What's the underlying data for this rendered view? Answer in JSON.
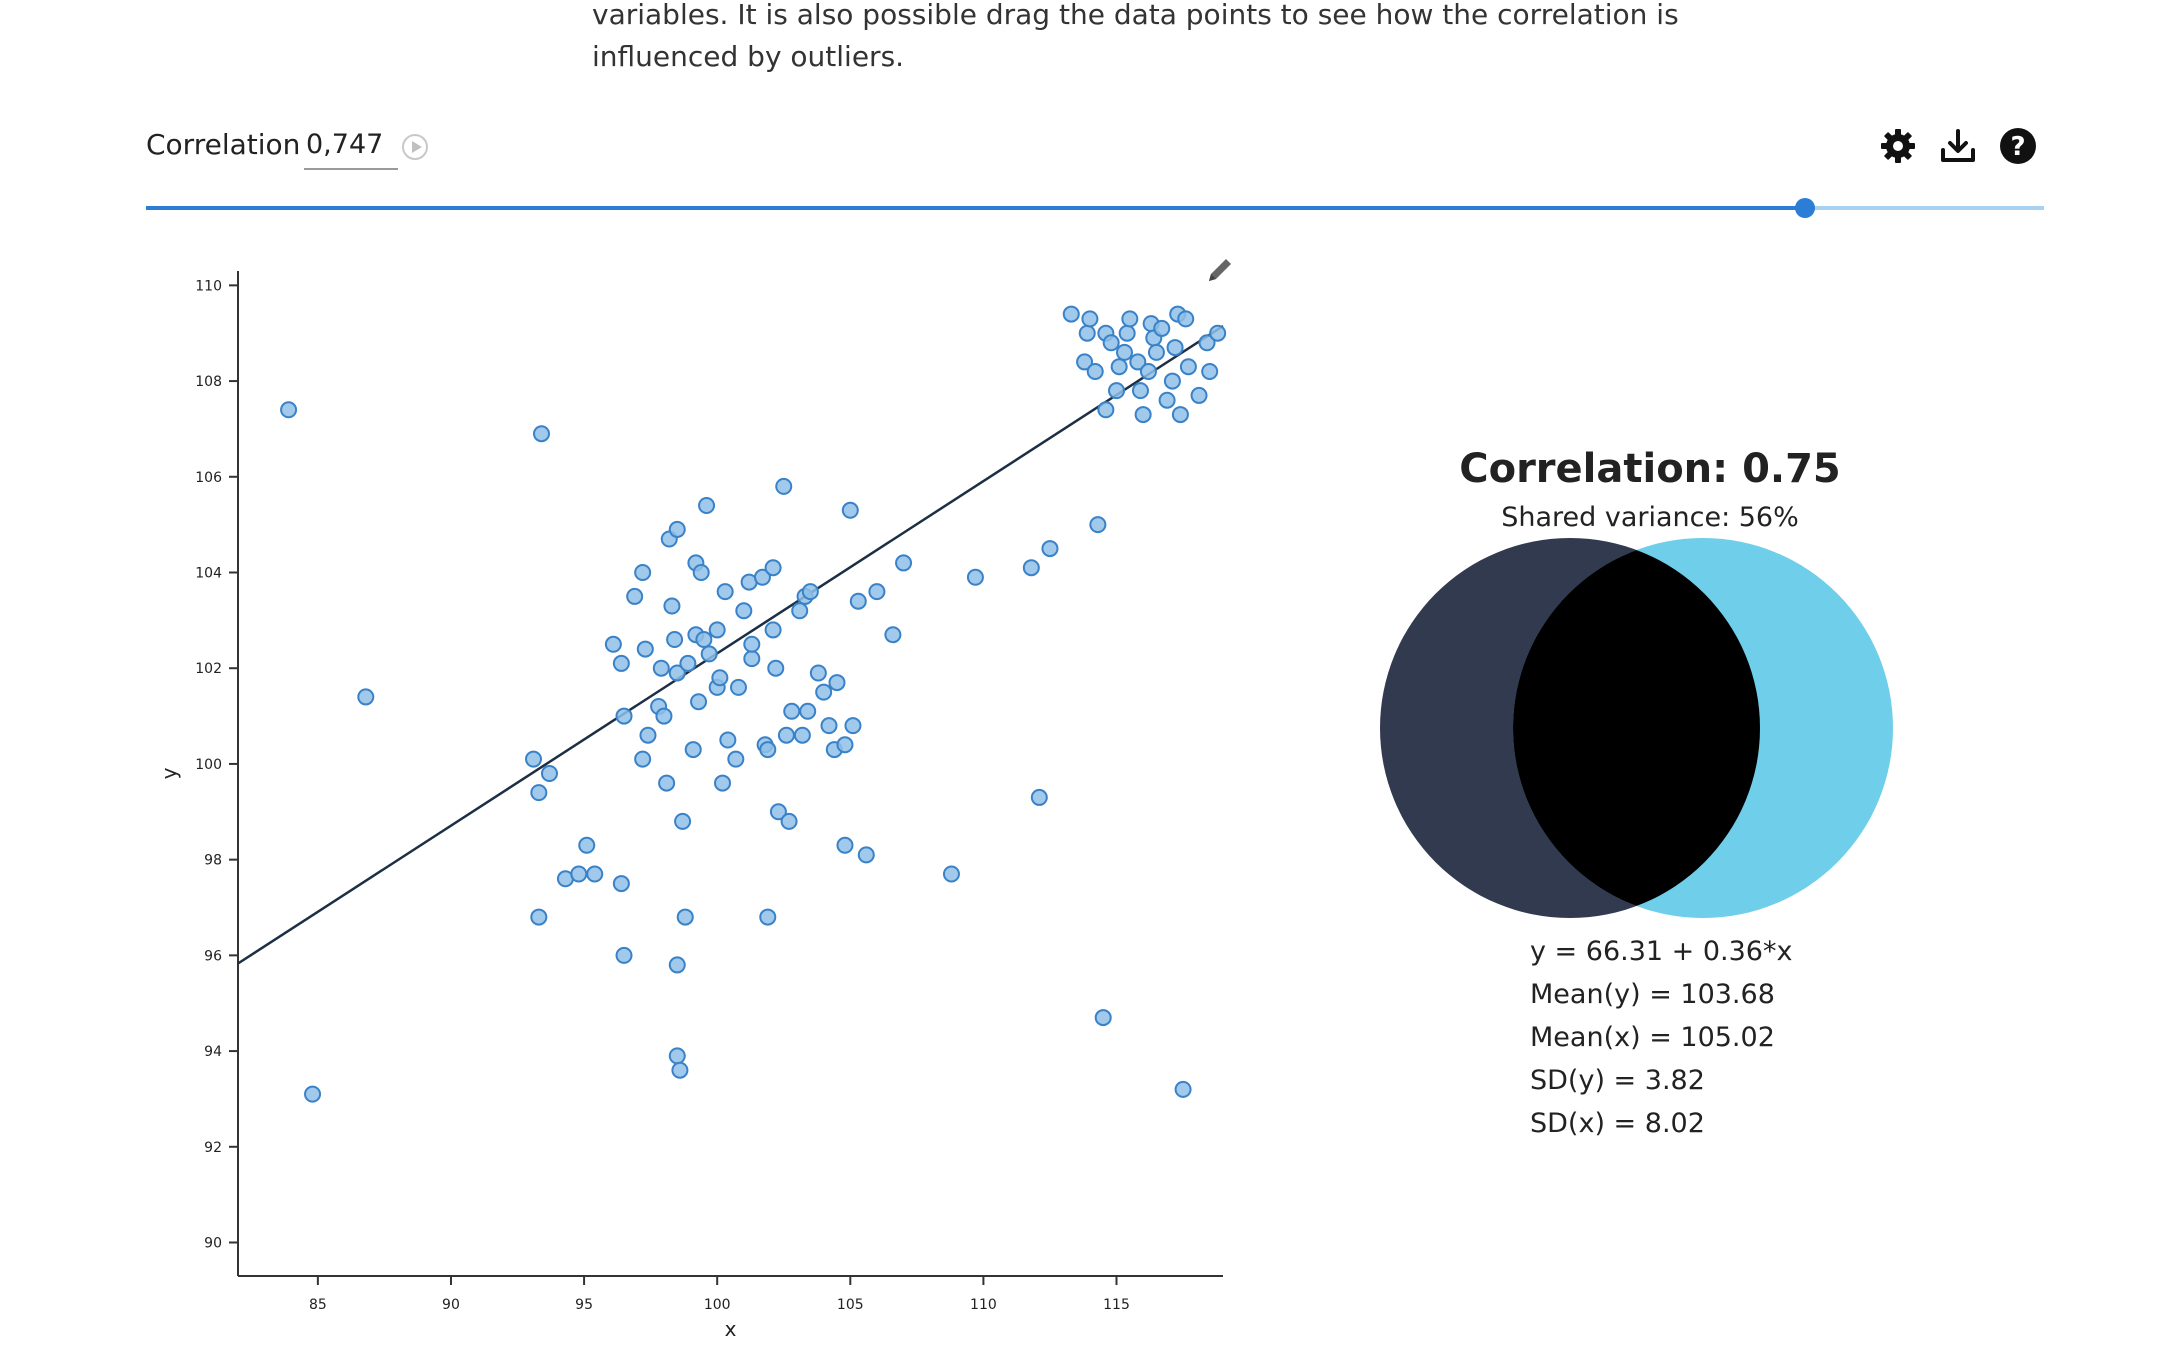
{
  "intro": {
    "line1": "variables. It is also possible drag the data points to see how the correlation is",
    "line2": "influenced by outliers."
  },
  "controls": {
    "correlation_label": "Correlation",
    "correlation_value": "0,747",
    "icons": [
      "play-icon",
      "gear-icon",
      "download-icon",
      "help-icon"
    ],
    "slider_position": 0.874
  },
  "summary": {
    "title": "Correlation: 0.75",
    "shared_variance": "Shared variance: 56%",
    "regression": "y = 66.31 + 0.36*x",
    "mean_y": "Mean(y) = 103.68",
    "mean_x": "Mean(x) = 105.02",
    "sd_y": "SD(y) = 3.82",
    "sd_x": "SD(x) = 8.02"
  },
  "colors": {
    "accent": "#2b7dd6",
    "point_fill": "#8fbfe8",
    "point_stroke": "#3a82c8",
    "regression_line": "#1c2f44",
    "venn_left": "#323a4f",
    "venn_right": "#6fcfea",
    "venn_overlap": "#000000"
  },
  "chart_data": {
    "type": "scatter",
    "title": "",
    "xlabel": "x",
    "ylabel": "y",
    "xlim": [
      82,
      119
    ],
    "ylim": [
      89.3,
      110.3
    ],
    "xticks": [
      85,
      90,
      95,
      100,
      105,
      110,
      115
    ],
    "yticks": [
      90,
      92,
      94,
      96,
      98,
      100,
      102,
      104,
      106,
      108,
      110
    ],
    "regression": {
      "intercept": 66.31,
      "slope": 0.36
    },
    "points": [
      [
        83.9,
        107.4
      ],
      [
        84.8,
        93.1
      ],
      [
        86.8,
        101.4
      ],
      [
        93.4,
        106.9
      ],
      [
        93.1,
        100.1
      ],
      [
        93.3,
        99.4
      ],
      [
        93.7,
        99.8
      ],
      [
        93.3,
        96.8
      ],
      [
        94.3,
        97.6
      ],
      [
        94.8,
        97.7
      ],
      [
        95.1,
        98.3
      ],
      [
        95.4,
        97.7
      ],
      [
        96.4,
        97.5
      ],
      [
        96.5,
        96.0
      ],
      [
        96.1,
        102.5
      ],
      [
        96.4,
        102.1
      ],
      [
        96.5,
        101.0
      ],
      [
        96.9,
        103.5
      ],
      [
        97.2,
        104.0
      ],
      [
        97.3,
        102.4
      ],
      [
        97.4,
        100.6
      ],
      [
        97.2,
        100.1
      ],
      [
        97.8,
        101.2
      ],
      [
        97.9,
        102.0
      ],
      [
        98.0,
        101.0
      ],
      [
        98.1,
        99.6
      ],
      [
        98.2,
        104.7
      ],
      [
        98.3,
        103.3
      ],
      [
        98.4,
        102.6
      ],
      [
        98.5,
        101.9
      ],
      [
        98.5,
        104.9
      ],
      [
        98.7,
        98.8
      ],
      [
        98.9,
        102.1
      ],
      [
        98.8,
        96.8
      ],
      [
        98.5,
        95.8
      ],
      [
        98.5,
        93.9
      ],
      [
        98.6,
        93.6
      ],
      [
        99.2,
        102.7
      ],
      [
        99.2,
        104.2
      ],
      [
        99.4,
        104.0
      ],
      [
        99.3,
        101.3
      ],
      [
        99.1,
        100.3
      ],
      [
        99.6,
        105.4
      ],
      [
        99.5,
        102.6
      ],
      [
        99.7,
        102.3
      ],
      [
        100.0,
        102.8
      ],
      [
        100.0,
        101.6
      ],
      [
        100.1,
        101.8
      ],
      [
        100.2,
        99.6
      ],
      [
        100.4,
        100.5
      ],
      [
        100.3,
        103.6
      ],
      [
        100.8,
        101.6
      ],
      [
        100.7,
        100.1
      ],
      [
        101.0,
        103.2
      ],
      [
        101.2,
        103.8
      ],
      [
        101.3,
        102.2
      ],
      [
        101.3,
        102.5
      ],
      [
        101.7,
        103.9
      ],
      [
        101.8,
        100.4
      ],
      [
        101.9,
        100.3
      ],
      [
        101.9,
        96.8
      ],
      [
        102.1,
        104.1
      ],
      [
        102.1,
        102.8
      ],
      [
        102.2,
        102.0
      ],
      [
        102.3,
        99.0
      ],
      [
        102.5,
        105.8
      ],
      [
        102.6,
        100.6
      ],
      [
        102.7,
        98.8
      ],
      [
        102.8,
        101.1
      ],
      [
        103.1,
        103.2
      ],
      [
        103.3,
        103.5
      ],
      [
        103.2,
        100.6
      ],
      [
        103.5,
        103.6
      ],
      [
        103.4,
        101.1
      ],
      [
        103.8,
        101.9
      ],
      [
        104.0,
        101.5
      ],
      [
        104.2,
        100.8
      ],
      [
        104.4,
        100.3
      ],
      [
        104.5,
        101.7
      ],
      [
        104.8,
        100.4
      ],
      [
        104.8,
        98.3
      ],
      [
        105.0,
        105.3
      ],
      [
        105.1,
        100.8
      ],
      [
        105.3,
        103.4
      ],
      [
        105.6,
        98.1
      ],
      [
        106.0,
        103.6
      ],
      [
        106.6,
        102.7
      ],
      [
        107.0,
        104.2
      ],
      [
        108.8,
        97.7
      ],
      [
        109.7,
        103.9
      ],
      [
        111.8,
        104.1
      ],
      [
        112.1,
        99.3
      ],
      [
        112.5,
        104.5
      ],
      [
        113.3,
        109.4
      ],
      [
        113.8,
        108.4
      ],
      [
        113.9,
        109.0
      ],
      [
        114.0,
        109.3
      ],
      [
        114.2,
        108.2
      ],
      [
        114.3,
        105.0
      ],
      [
        114.5,
        94.7
      ],
      [
        114.6,
        109.0
      ],
      [
        114.6,
        107.4
      ],
      [
        114.8,
        108.8
      ],
      [
        115.0,
        107.8
      ],
      [
        115.1,
        108.3
      ],
      [
        115.3,
        108.6
      ],
      [
        115.4,
        109.0
      ],
      [
        115.5,
        109.3
      ],
      [
        115.8,
        108.4
      ],
      [
        115.9,
        107.8
      ],
      [
        116.0,
        107.3
      ],
      [
        116.2,
        108.2
      ],
      [
        116.3,
        109.2
      ],
      [
        116.4,
        108.9
      ],
      [
        116.5,
        108.6
      ],
      [
        116.7,
        109.1
      ],
      [
        116.9,
        107.6
      ],
      [
        117.1,
        108.0
      ],
      [
        117.2,
        108.7
      ],
      [
        117.3,
        109.4
      ],
      [
        117.4,
        107.3
      ],
      [
        117.5,
        93.2
      ],
      [
        117.6,
        109.3
      ],
      [
        117.7,
        108.3
      ],
      [
        118.1,
        107.7
      ],
      [
        118.4,
        108.8
      ],
      [
        118.5,
        108.2
      ],
      [
        118.8,
        109.0
      ]
    ]
  }
}
